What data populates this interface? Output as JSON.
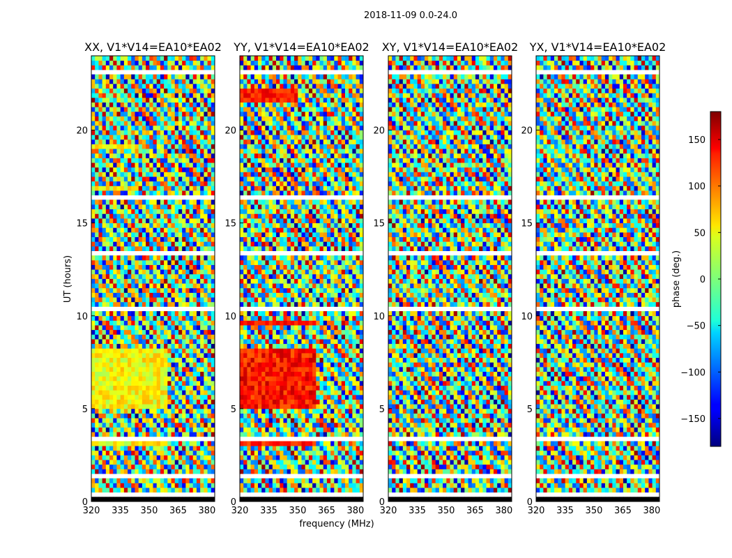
{
  "chart_data": {
    "type": "heatmap",
    "title": "2018-11-09 0.0-24.0",
    "xlabel": "frequency (MHz)",
    "ylabel": "UT (hours)",
    "xlim": [
      320,
      384
    ],
    "ylim": [
      0,
      24
    ],
    "xticks": [
      "320",
      "335",
      "350",
      "365",
      "380"
    ],
    "yticks": [
      "0",
      "5",
      "10",
      "15",
      "20"
    ],
    "panels": [
      {
        "name": "XX, V1*V14=EA10*EA02"
      },
      {
        "name": "YY, V1*V14=EA10*EA02"
      },
      {
        "name": "XY, V1*V14=EA10*EA02"
      },
      {
        "name": "YX, V1*V14=EA10*EA02"
      }
    ],
    "colorbar": {
      "label": "phase (deg.)",
      "range": [
        -180,
        180
      ],
      "ticks": [
        "150",
        "100",
        "50",
        "0",
        "−50",
        "−100",
        "−150"
      ],
      "colormap": "jet"
    }
  }
}
